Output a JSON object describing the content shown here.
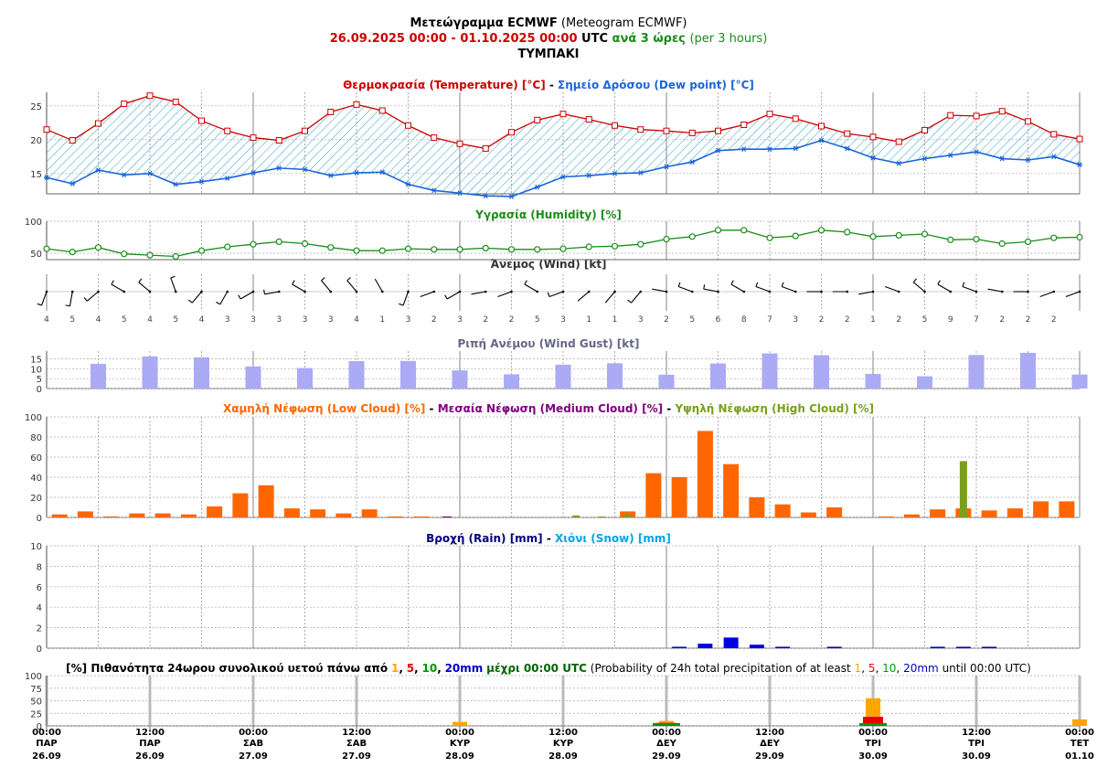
{
  "header": {
    "title_gr": "Μετεώγραμμα ECMWF",
    "title_en": "(Meteogram ECMWF)",
    "date_from": "26.09.2025 00:00",
    "dash": "-",
    "date_to": "01.10.2025 00:00",
    "utc": "UTC",
    "step_gr": "ανά 3 ώρες",
    "step_en": "(per 3 hours)",
    "location": "ΤΥΜΠΑΚΙ"
  },
  "colors": {
    "temperature": "#cc0000",
    "dewpoint": "#1a66d9",
    "humidity": "#1a8c1a",
    "gust": "#aaaaf5",
    "low_cloud": "#ff6600",
    "medium_cloud": "#800080",
    "high_cloud": "#7aa019",
    "rain": "#0000e6",
    "snow": "#00a5e6",
    "p1": "#ffa500",
    "p5": "#e60000",
    "p10": "#009900",
    "p20": "#0000cc"
  },
  "chart_data": [
    {
      "type": "line",
      "title_a": "Θερμοκρασία (Temperature) [°C]",
      "separator": "-",
      "title_b": "Σημείο Δρόσου (Dew point) [°C]",
      "yticks": [
        "15",
        "20",
        "25"
      ],
      "ylim": [
        12,
        27
      ],
      "series": [
        {
          "name": "Θερμοκρασία (Temperature) [°C]",
          "values": [
            21.5,
            19.9,
            22.4,
            25.3,
            26.5,
            25.6,
            22.8,
            21.3,
            20.3,
            19.9,
            21.3,
            24.1,
            25.2,
            24.3,
            22.1,
            20.3,
            19.4,
            18.7,
            21.1,
            22.9,
            23.8,
            23.0,
            22.1,
            21.5,
            21.3,
            21.0,
            21.3,
            22.2,
            23.8,
            23.1,
            22.0,
            20.9,
            20.4,
            19.7,
            21.4,
            23.6,
            23.5,
            24.2,
            22.7,
            20.8,
            20.1
          ]
        },
        {
          "name": "Σημείο Δρόσου (Dew point) [°C]",
          "values": [
            14.4,
            13.5,
            15.5,
            14.8,
            15.0,
            13.4,
            13.8,
            14.3,
            15.1,
            15.8,
            15.6,
            14.7,
            15.1,
            15.2,
            13.4,
            12.5,
            12.1,
            11.7,
            11.6,
            13.0,
            14.5,
            14.7,
            15.0,
            15.1,
            16.0,
            16.7,
            18.4,
            18.6,
            18.6,
            18.7,
            19.9,
            18.7,
            17.3,
            16.5,
            17.2,
            17.7,
            18.2,
            17.2,
            17.0,
            17.5,
            16.3
          ]
        }
      ]
    },
    {
      "type": "line",
      "title": "Υγρασία (Humidity) [%]",
      "yticks": [
        "50",
        "100"
      ],
      "ylim": [
        40,
        100
      ],
      "series": [
        {
          "name": "Υγρασία (Humidity) [%]",
          "values": [
            57,
            52,
            59,
            49,
            47,
            45,
            54,
            60,
            64,
            68,
            65,
            59,
            54,
            54,
            57,
            56,
            56,
            58,
            56,
            56,
            57,
            60,
            61,
            64,
            72,
            76,
            86,
            86,
            74,
            77,
            86,
            83,
            76,
            78,
            80,
            71,
            72,
            65,
            68,
            74,
            75
          ]
        }
      ]
    },
    {
      "type": "wind",
      "title": "Άνεμος (Wind) [kt]",
      "speed_labels": [
        "4",
        "5",
        "4",
        "5",
        "4",
        "5",
        "4",
        "3",
        "3",
        "3",
        "3",
        "3",
        "4",
        "1",
        "3",
        "2",
        "3",
        "2",
        "2",
        "5",
        "3",
        "1",
        "1",
        "3",
        "2",
        "5",
        "6",
        "8",
        "7",
        "3",
        "2",
        "2",
        "1",
        "2",
        "5",
        "9",
        "7",
        "2",
        "2",
        "2"
      ]
    },
    {
      "type": "bar",
      "title": "Ριπή Ανέμου (Wind Gust) [kt]",
      "yticks": [
        "0",
        "5",
        "10",
        "15"
      ],
      "ylim": [
        0,
        19
      ],
      "x_index": [
        2,
        4,
        6,
        8,
        10,
        12,
        14,
        16,
        18,
        20,
        22,
        24,
        26,
        28,
        30,
        32,
        34,
        36,
        38,
        40
      ],
      "series": [
        {
          "name": "Ριπή Ανέμου (Wind Gust) [kt]",
          "values": [
            12.5,
            16.3,
            15.8,
            11.2,
            10.4,
            13.9,
            14.0,
            9.2,
            7.2,
            12.1,
            12.8,
            7.0,
            12.7,
            17.8,
            16.9,
            7.4,
            6.2,
            17.0,
            18.1,
            7.1
          ]
        }
      ]
    },
    {
      "type": "bar",
      "title_low": "Χαμηλή Νέφωση (Low Cloud) [%]",
      "title_medium": "Μεσαία Νέφωση (Medium Cloud) [%]",
      "title_high": "Υψηλή Νέφωση (High Cloud) [%]",
      "separator": "-",
      "yticks": [
        "0",
        "20",
        "40",
        "60",
        "80",
        "100"
      ],
      "ylim": [
        0,
        100
      ],
      "series": [
        {
          "name": "Χαμηλή Νέφωση (Low Cloud) [%]",
          "values": [
            3,
            6,
            1,
            4,
            4,
            3,
            11,
            24,
            32,
            9,
            8,
            4,
            8,
            1,
            1,
            0,
            0,
            0,
            0,
            0,
            0,
            0,
            6,
            44,
            40,
            86,
            53,
            20,
            13,
            5,
            10,
            0,
            1,
            3,
            8,
            9,
            7,
            9,
            16,
            16
          ]
        },
        {
          "name": "Μεσαία Νέφωση (Medium Cloud) [%]",
          "values": [
            0,
            0,
            0,
            0,
            0,
            0,
            0,
            0,
            0,
            0,
            0,
            0,
            0,
            0,
            0,
            1,
            0,
            0,
            0,
            0,
            0,
            0,
            0,
            0,
            0,
            0,
            0,
            0,
            0,
            0,
            0,
            0,
            0,
            0,
            0,
            0,
            0,
            0,
            0,
            0
          ]
        },
        {
          "name": "Υψηλή Νέφωση (High Cloud) [%]",
          "values": [
            0,
            0,
            0,
            0,
            0,
            0,
            0,
            0,
            0,
            0,
            0,
            0,
            0,
            0,
            0,
            0,
            0,
            0,
            0,
            0,
            2,
            1,
            3,
            0,
            0,
            0,
            0,
            0,
            0,
            0,
            0,
            0,
            0,
            0,
            0,
            56,
            0,
            0,
            0,
            0
          ]
        }
      ]
    },
    {
      "type": "bar",
      "title_rain": "Βροχή (Rain) [mm]",
      "separator": "-",
      "title_snow": "Χιόνι (Snow) [mm]",
      "yticks": [
        "0",
        "2",
        "4",
        "6",
        "8",
        "10"
      ],
      "ylim": [
        0,
        10
      ],
      "series": [
        {
          "name": "Βροχή (Rain) [mm]",
          "values": [
            0,
            0,
            0,
            0,
            0,
            0,
            0,
            0,
            0,
            0,
            0,
            0,
            0,
            0,
            0,
            0,
            0,
            0,
            0,
            0,
            0,
            0,
            0,
            0,
            0.05,
            0.35,
            0.95,
            0.25,
            0.05,
            0,
            0.05,
            0,
            0,
            0,
            0.05,
            0.05,
            0.05,
            0,
            0,
            0
          ]
        },
        {
          "name": "Χιόνι (Snow) [mm]",
          "values": [
            0,
            0,
            0,
            0,
            0,
            0,
            0,
            0,
            0,
            0,
            0,
            0,
            0,
            0,
            0,
            0,
            0,
            0,
            0,
            0,
            0,
            0,
            0,
            0,
            0,
            0,
            0,
            0,
            0,
            0,
            0,
            0,
            0,
            0,
            0,
            0,
            0,
            0,
            0,
            0
          ]
        }
      ]
    },
    {
      "type": "bar",
      "title": {
        "prefix_gr": "[%] Πιθανότητα 24ωρου συνολικού υετού πάνω από",
        "t1": "1",
        "c1": ",",
        "t5": "5",
        "c2": ",",
        "t10": "10",
        "c3": ",",
        "t20": "20mm",
        "until_gr": "μέχρι 00:00 UTC",
        "prefix_en": "(Probability of 24h total precipitation of at least",
        "e1": "1",
        "ec1": ",",
        "e5": "5",
        "ec2": ",",
        "e10": "10",
        "ec3": ",",
        "e20": "20mm",
        "until_en": "until 00:00 UTC)"
      },
      "yticks": [
        "0",
        "25",
        "50",
        "75",
        "100"
      ],
      "ylim": [
        0,
        100
      ],
      "x_index": [
        16,
        24,
        32,
        40
      ],
      "series": [
        {
          "name": "1",
          "values": [
            8,
            10,
            55,
            13
          ]
        },
        {
          "name": "5",
          "values": [
            0,
            6,
            18,
            0
          ]
        },
        {
          "name": "10",
          "values": [
            0,
            2,
            5,
            0
          ]
        },
        {
          "name": "20mm",
          "values": [
            0,
            0,
            0,
            0
          ]
        }
      ]
    }
  ],
  "time_axis": [
    {
      "time": "00:00",
      "day": "ΠΑΡ",
      "date": "26.09"
    },
    {
      "time": "12:00",
      "day": "ΠΑΡ",
      "date": "26.09"
    },
    {
      "time": "00:00",
      "day": "ΣΑΒ",
      "date": "27.09"
    },
    {
      "time": "12:00",
      "day": "ΣΑΒ",
      "date": "27.09"
    },
    {
      "time": "00:00",
      "day": "ΚΥΡ",
      "date": "28.09"
    },
    {
      "time": "12:00",
      "day": "ΚΥΡ",
      "date": "28.09"
    },
    {
      "time": "00:00",
      "day": "ΔΕΥ",
      "date": "29.09"
    },
    {
      "time": "12:00",
      "day": "ΔΕΥ",
      "date": "29.09"
    },
    {
      "time": "00:00",
      "day": "ΤΡΙ",
      "date": "30.09"
    },
    {
      "time": "12:00",
      "day": "ΤΡΙ",
      "date": "30.09"
    },
    {
      "time": "00:00",
      "day": "ΤΕΤ",
      "date": "01.10"
    }
  ]
}
